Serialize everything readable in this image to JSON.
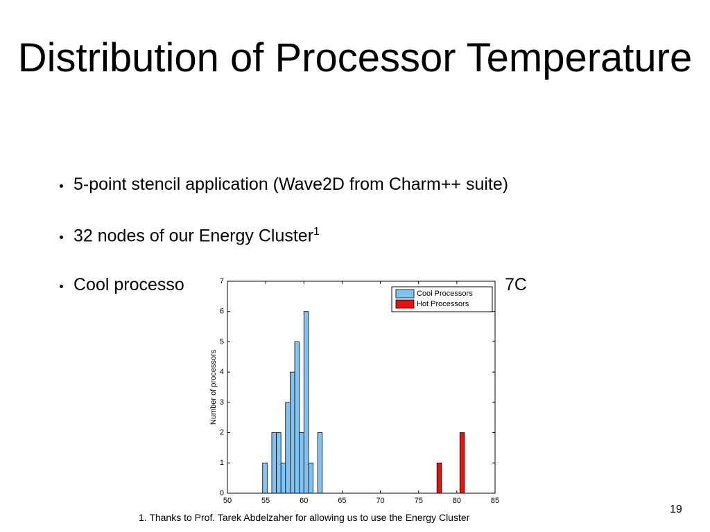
{
  "title": "Distribution of Processor Temperature",
  "bullets": [
    {
      "text": "5-point stencil application (Wave2D from Charm++ suite)"
    },
    {
      "text": "32 nodes of our Energy Cluster",
      "sup": "1"
    },
    {
      "text": "Cool processo",
      "tail": "7C"
    }
  ],
  "footnote": "1. Thanks to Prof. Tarek Abdelzaher for allowing us to use the Energy Cluster",
  "page_number": "19",
  "chart_data": {
    "type": "histogram",
    "ylabel": "Number of processors",
    "xlim": [
      50,
      85
    ],
    "xticks": [
      50,
      55,
      60,
      65,
      70,
      75,
      80,
      85
    ],
    "ylim": [
      0,
      7
    ],
    "yticks": [
      0,
      1,
      2,
      3,
      4,
      5,
      6,
      7
    ],
    "legend": "upper right",
    "series": [
      {
        "name": "Cool Processors",
        "color": "#7fc4f5",
        "bins": [
          54.6,
          55.2,
          55.8,
          56.4,
          57.0,
          57.6,
          58.2,
          58.8,
          59.4,
          60.0,
          60.6,
          61.2,
          61.8,
          62.4
        ],
        "values": [
          1,
          0,
          2,
          2,
          1,
          3,
          4,
          5,
          2,
          6,
          1,
          0,
          2
        ]
      },
      {
        "name": "Hot Processors",
        "color": "#e81010",
        "bins": [
          77.4,
          78.0,
          80.4,
          81.0
        ],
        "values": [
          1,
          0,
          2
        ]
      }
    ]
  }
}
